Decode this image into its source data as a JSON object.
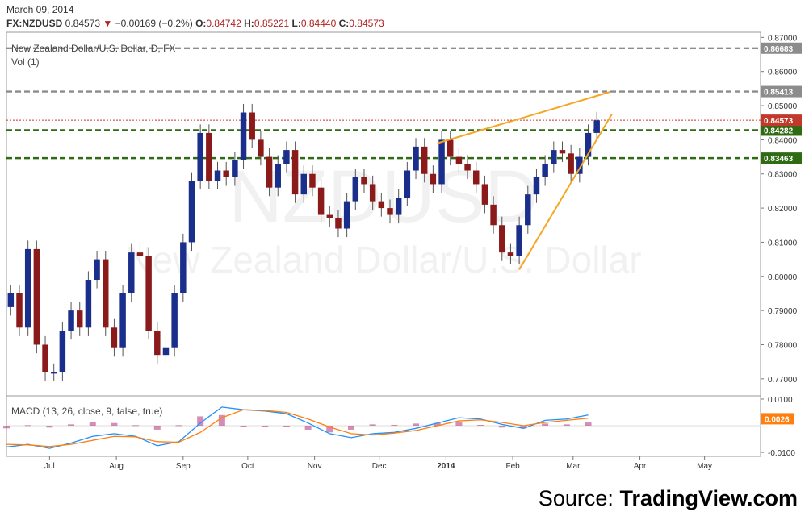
{
  "header": {
    "date": "March 09, 2014",
    "symbol": "FX:NZDUSD",
    "last": "0.84573",
    "change": "−0.00169 (−0.2%)",
    "open_label": "O:",
    "open": "0.84742",
    "high_label": "H:",
    "high": "0.85221",
    "low_label": "L:",
    "low": "0.84440",
    "close_label": "C:",
    "close": "0.84573"
  },
  "main_pane": {
    "title": "New Zealand Dollar/U.S. Dollar, D, FX",
    "vol_label": "Vol (1)",
    "watermark_symbol": "NZDUSD",
    "watermark_name": "New Zealand Dollar/U.S. Dollar"
  },
  "macd_pane": {
    "title": "MACD (13, 26, close, 9, false, true)"
  },
  "source": {
    "prefix": "Source:",
    "brand": "TradingView.com"
  },
  "colors": {
    "up": "#1a2e8c",
    "down": "#8b1a1a",
    "support": "#2e6b12",
    "resistance": "#8c8c8c",
    "trend": "#f5a623",
    "macd": "#1e90ff",
    "signal": "#ff7f0e",
    "hist": "#b03078",
    "last_price": "#c0392b"
  },
  "chart_data": [
    {
      "type": "candlestick",
      "title": "New Zealand Dollar/U.S. Dollar, D, FX",
      "ylim": [
        0.765,
        0.8715
      ],
      "y_ticks": [
        "0.87000",
        "0.86000",
        "0.85000",
        "0.84000",
        "0.83000",
        "0.82000",
        "0.81000",
        "0.80000",
        "0.79000",
        "0.78000",
        "0.77000"
      ],
      "x_ticks": [
        {
          "label": "Jul",
          "day": 20
        },
        {
          "label": "Aug",
          "day": 51
        },
        {
          "label": "Sep",
          "day": 82
        },
        {
          "label": "Oct",
          "day": 112
        },
        {
          "label": "Nov",
          "day": 143
        },
        {
          "label": "Dec",
          "day": 173
        },
        {
          "label": "2014",
          "day": 204
        },
        {
          "label": "Feb",
          "day": 235
        },
        {
          "label": "Mar",
          "day": 263
        },
        {
          "label": "Apr",
          "day": 294
        },
        {
          "label": "May",
          "day": 324
        }
      ],
      "day_range": [
        0,
        350
      ],
      "horizontal_lines": [
        {
          "value": 0.86683,
          "label": "0.86683",
          "style": "dashed",
          "color": "#8c8c8c"
        },
        {
          "value": 0.85413,
          "label": "0.85413",
          "style": "dashed",
          "color": "#8c8c8c"
        },
        {
          "value": 0.84282,
          "label": "0.84282",
          "style": "dashed",
          "color": "#2e6b12"
        },
        {
          "value": 0.83463,
          "label": "0.83463",
          "style": "dashed",
          "color": "#2e6b12"
        },
        {
          "value": 0.84573,
          "label": "0.84573",
          "style": "dotted",
          "color": "#c0392b"
        }
      ],
      "trend_lines": [
        {
          "name": "upper",
          "from": {
            "day": 200,
            "value": 0.839
          },
          "to": {
            "day": 280,
            "value": 0.854
          }
        },
        {
          "name": "lower",
          "from": {
            "day": 238,
            "value": 0.802
          },
          "to": {
            "day": 281,
            "value": 0.8475
          }
        }
      ],
      "series": [
        {
          "days": [
            2,
            6,
            10,
            14,
            18,
            22,
            26,
            30,
            34,
            38,
            42,
            46,
            50,
            54,
            58,
            62,
            66,
            70,
            74,
            78,
            82,
            86,
            90,
            94,
            98,
            102,
            106,
            110,
            114,
            118,
            122,
            126,
            130,
            134,
            138,
            142,
            146,
            150,
            154,
            158,
            162,
            166,
            170,
            174,
            178,
            182,
            186,
            190,
            194,
            198,
            202,
            206,
            210,
            214,
            218,
            222,
            226,
            230,
            234,
            238,
            242,
            246,
            250,
            254,
            258,
            262,
            266,
            270,
            274
          ],
          "close": [
            0.795,
            0.785,
            0.808,
            0.78,
            0.772,
            0.772,
            0.784,
            0.79,
            0.785,
            0.799,
            0.805,
            0.785,
            0.779,
            0.795,
            0.807,
            0.806,
            0.784,
            0.777,
            0.779,
            0.795,
            0.81,
            0.828,
            0.842,
            0.828,
            0.831,
            0.829,
            0.834,
            0.848,
            0.84,
            0.835,
            0.826,
            0.833,
            0.837,
            0.824,
            0.83,
            0.826,
            0.818,
            0.817,
            0.814,
            0.822,
            0.829,
            0.827,
            0.822,
            0.82,
            0.818,
            0.823,
            0.831,
            0.838,
            0.83,
            0.827,
            0.84,
            0.835,
            0.833,
            0.831,
            0.827,
            0.821,
            0.815,
            0.807,
            0.806,
            0.815,
            0.824,
            0.829,
            0.833,
            0.837,
            0.836,
            0.83,
            0.835,
            0.842,
            0.8457
          ]
        }
      ]
    },
    {
      "type": "macd",
      "title": "MACD (13, 26, close, 9, false, true)",
      "ylim": [
        -0.0115,
        0.0112
      ],
      "y_ticks": [
        "0.0100",
        "-0.0100"
      ],
      "last_value": "0.0026",
      "series": [
        {
          "name": "MACD",
          "days": [
            0,
            10,
            20,
            30,
            40,
            50,
            60,
            70,
            80,
            90,
            100,
            110,
            120,
            130,
            140,
            150,
            160,
            170,
            180,
            190,
            200,
            210,
            220,
            230,
            240,
            250,
            260,
            270
          ],
          "values": [
            -0.008,
            -0.007,
            -0.0085,
            -0.0065,
            -0.004,
            -0.003,
            -0.004,
            -0.0075,
            -0.006,
            0.001,
            0.007,
            0.006,
            0.0055,
            0.0045,
            0.001,
            -0.003,
            -0.0045,
            -0.003,
            -0.0025,
            -0.001,
            0.001,
            0.003,
            0.0025,
            0.0005,
            -0.001,
            0.002,
            0.0025,
            0.004
          ]
        },
        {
          "name": "Signal",
          "days": [
            0,
            10,
            20,
            30,
            40,
            50,
            60,
            70,
            80,
            90,
            100,
            110,
            120,
            130,
            140,
            150,
            160,
            170,
            180,
            190,
            200,
            210,
            220,
            230,
            240,
            250,
            260,
            270
          ],
          "values": [
            -0.007,
            -0.0072,
            -0.0078,
            -0.007,
            -0.0055,
            -0.004,
            -0.0042,
            -0.006,
            -0.0062,
            -0.0025,
            0.003,
            0.006,
            0.0057,
            0.005,
            0.0025,
            -0.0005,
            -0.003,
            -0.0035,
            -0.0028,
            -0.0018,
            0.0,
            0.0018,
            0.0022,
            0.0012,
            0.0,
            0.0012,
            0.002,
            0.0028
          ]
        }
      ]
    }
  ]
}
